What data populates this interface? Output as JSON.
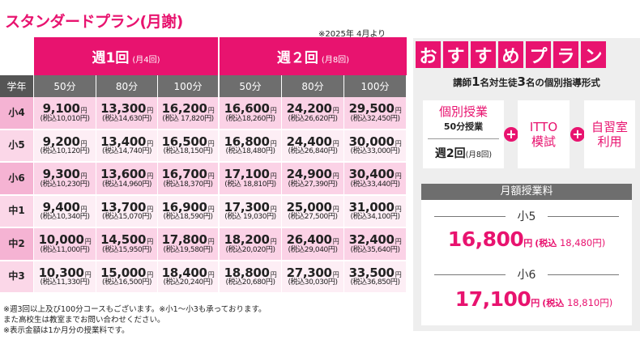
{
  "title": "スタンダードプラン(月謝)",
  "date_note": "※2025年 4月より",
  "table": {
    "group1": {
      "label": "週1回",
      "sub": "(月4回)"
    },
    "group2": {
      "label": "週２回",
      "sub": "(月8回)"
    },
    "grade_header": "学年",
    "columns": [
      "50分",
      "80分",
      "100分",
      "50分",
      "80分",
      "100分"
    ],
    "yen": "円",
    "rows": [
      {
        "grade": "小4",
        "cells": [
          {
            "price": "9,100",
            "tax": "(税込10,010円)"
          },
          {
            "price": "13,300",
            "tax": "(税込14,630円)"
          },
          {
            "price": "16,200",
            "tax": "(税込 17,820円)"
          },
          {
            "price": "16,600",
            "tax": "(税込18,260円)"
          },
          {
            "price": "24,200",
            "tax": "(税込26,620円)"
          },
          {
            "price": "29,500",
            "tax": "(税込32,450円)"
          }
        ]
      },
      {
        "grade": "小5",
        "cells": [
          {
            "price": "9,200",
            "tax": "(税込10,120円)"
          },
          {
            "price": "13,400",
            "tax": "(税込14,740円)"
          },
          {
            "price": "16,500",
            "tax": "(税込18,150円)"
          },
          {
            "price": "16,800",
            "tax": "(税込18,480円)"
          },
          {
            "price": "24,400",
            "tax": "(税込26,840円)"
          },
          {
            "price": "30,000",
            "tax": "(税込33,000円)"
          }
        ]
      },
      {
        "grade": "小6",
        "cells": [
          {
            "price": "9,300",
            "tax": "(税込10,230円)"
          },
          {
            "price": "13,600",
            "tax": "(税込14,960円)"
          },
          {
            "price": "16,700",
            "tax": "(税込18,370円)"
          },
          {
            "price": "17,100",
            "tax": "(税込 18,810円)"
          },
          {
            "price": "24,900",
            "tax": "(税込27,390円)"
          },
          {
            "price": "30,400",
            "tax": "(税込33,440円)"
          }
        ]
      },
      {
        "grade": "中1",
        "cells": [
          {
            "price": "9,400",
            "tax": "(税込10,340円)"
          },
          {
            "price": "13,700",
            "tax": "(税込15,070円)"
          },
          {
            "price": "16,900",
            "tax": "(税込18,590円)"
          },
          {
            "price": "17,300",
            "tax": "(税込 19,030円)"
          },
          {
            "price": "25,000",
            "tax": "(税込27,500円)"
          },
          {
            "price": "31,000",
            "tax": "(税込34,100円)"
          }
        ]
      },
      {
        "grade": "中2",
        "cells": [
          {
            "price": "10,000",
            "tax": "(税込11,000円)"
          },
          {
            "price": "14,500",
            "tax": "(税込15,950円)"
          },
          {
            "price": "17,800",
            "tax": "(税込19,580円)"
          },
          {
            "price": "18,200",
            "tax": "(税込20,020円)"
          },
          {
            "price": "26,400",
            "tax": "(税込29,040円)"
          },
          {
            "price": "32,400",
            "tax": "(税込35,640円)"
          }
        ]
      },
      {
        "grade": "中3",
        "cells": [
          {
            "price": "10,300",
            "tax": "(税込11,330円)"
          },
          {
            "price": "15,000",
            "tax": "(税込16,500円)"
          },
          {
            "price": "18,400",
            "tax": "(税込20,240円)"
          },
          {
            "price": "18,800",
            "tax": "(税込20,680円)"
          },
          {
            "price": "27,300",
            "tax": "(税込30,030円)"
          },
          {
            "price": "33,500",
            "tax": "(税込36,850円)"
          }
        ]
      }
    ]
  },
  "notes": [
    "※週3回以上及び100分コースもございます。※小1～小3も承っております。",
    "また高校生は教室までお問い合わせください。",
    "※表示金額は1か月分の授業料です。"
  ],
  "recommend": {
    "title_chars": [
      "お",
      "す",
      "す",
      "め",
      "プ",
      "ラ",
      "ン"
    ],
    "subtitle": {
      "pre": "講師",
      "n1": "1",
      "mid": "名対生徒",
      "n2": "3",
      "post": "名の個別指導形式"
    },
    "box1": {
      "title": "個別授業",
      "sub": "50分授業",
      "week": "週2回",
      "week_sub": "(月8回)"
    },
    "plus": "+",
    "box2": {
      "line1": "ITTO",
      "line2": "模試"
    },
    "box3": {
      "line1": "自習室",
      "line2": "利用"
    },
    "fee_header": "月額授業料",
    "fees": [
      {
        "grade": "小5",
        "price": "16,800",
        "yen": "円",
        "tax_label": "(税込",
        "tax_value": "18,480円)"
      },
      {
        "grade": "小6",
        "price": "17,100",
        "yen": "円",
        "tax_label": "(税込",
        "tax_value": "18,810円)"
      }
    ]
  },
  "colors": {
    "accent": "#e8136f",
    "header_gray": "#6e6e6e",
    "row_pink": "#fbd2e6",
    "row_light": "#fdeef5",
    "panel_bg": "#eeeeee"
  }
}
